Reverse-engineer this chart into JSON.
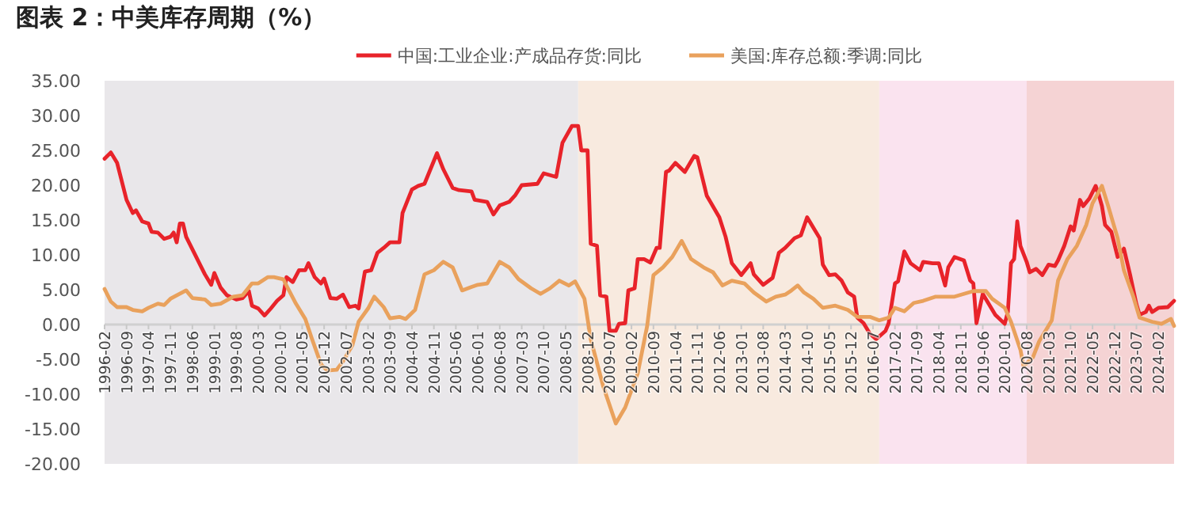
{
  "chart_data": {
    "type": "line",
    "title": "图表 2：中美库存周期（%）",
    "xlim": [
      "1996-02",
      "2024-07"
    ],
    "ylim": [
      -20,
      35
    ],
    "xticks": [
      "1996-02",
      "1996-09",
      "1997-04",
      "1997-11",
      "1998-06",
      "1999-01",
      "1999-08",
      "2000-03",
      "2000-10",
      "2001-05",
      "2001-12",
      "2002-07",
      "2003-02",
      "2003-09",
      "2004-04",
      "2004-11",
      "2005-06",
      "2006-01",
      "2006-08",
      "2007-03",
      "2007-10",
      "2008-05",
      "2008-12",
      "2009-07",
      "2010-02",
      "2010-09",
      "2011-04",
      "2011-11",
      "2012-06",
      "2013-01",
      "2013-08",
      "2014-03",
      "2014-10",
      "2015-05",
      "2015-12",
      "2016-07",
      "2017-02",
      "2017-09",
      "2018-04",
      "2018-11",
      "2019-06",
      "2020-01",
      "2020-08",
      "2021-03",
      "2021-10",
      "2022-05",
      "2022-12",
      "2023-07",
      "2024-02"
    ],
    "yticks": [
      {
        "value": 35,
        "label": "35.00"
      },
      {
        "value": 30,
        "label": "30.00"
      },
      {
        "value": 25,
        "label": "25.00"
      },
      {
        "value": 20,
        "label": "20.00"
      },
      {
        "value": 15,
        "label": "15.00"
      },
      {
        "value": 10,
        "label": "10.00"
      },
      {
        "value": 5,
        "label": "5.00"
      },
      {
        "value": 0,
        "label": "0.00"
      },
      {
        "value": -5,
        "label": "-5.00"
      },
      {
        "value": -10,
        "label": "-10.00"
      },
      {
        "value": -15,
        "label": "-15.00"
      },
      {
        "value": -20,
        "label": "-20.00"
      }
    ],
    "grid": false,
    "legend": "top",
    "marker": "none",
    "line_style": "solid",
    "bands": [
      {
        "axis": "x",
        "from": "1996-02",
        "to": "2008-09",
        "color": "#e9e7ea"
      },
      {
        "axis": "x",
        "from": "2008-09",
        "to": "2016-09",
        "color": "#f8eadf"
      },
      {
        "axis": "x",
        "from": "2016-09",
        "to": "2020-08",
        "color": "#fae3ef"
      },
      {
        "axis": "x",
        "from": "2020-08",
        "to": "2024-07",
        "color": "#f5d3d4"
      }
    ],
    "series": [
      {
        "name": "中国:工业企业:产成品存货:同比",
        "color": "#e8232a",
        "x": [
          "1996-02",
          "1996-04",
          "1996-06",
          "1996-09",
          "1996-11",
          "1996-12",
          "1997-02",
          "1997-04",
          "1997-05",
          "1997-07",
          "1997-09",
          "1997-11",
          "1997-12",
          "1998-01",
          "1998-02",
          "1998-03",
          "1998-04",
          "1998-07",
          "1998-10",
          "1998-12",
          "1999-01",
          "1999-03",
          "1999-05",
          "1999-08",
          "1999-10",
          "1999-12",
          "2000-01",
          "2000-03",
          "2000-05",
          "2000-07",
          "2000-09",
          "2000-11",
          "2000-12",
          "2001-02",
          "2001-04",
          "2001-06",
          "2001-07",
          "2001-09",
          "2001-11",
          "2001-12",
          "2002-02",
          "2002-04",
          "2002-06",
          "2002-08",
          "2002-10",
          "2002-11",
          "2003-01",
          "2003-03",
          "2003-05",
          "2003-07",
          "2003-09",
          "2003-12",
          "2004-01",
          "2004-04",
          "2004-06",
          "2004-08",
          "2004-12",
          "2005-02",
          "2005-05",
          "2005-07",
          "2005-11",
          "2005-12",
          "2006-04",
          "2006-06",
          "2006-08",
          "2006-11",
          "2007-01",
          "2007-03",
          "2007-08",
          "2007-10",
          "2008-02",
          "2008-04",
          "2008-07",
          "2008-09",
          "2008-10",
          "2008-12",
          "2009-01",
          "2009-03",
          "2009-04",
          "2009-06",
          "2009-07",
          "2009-09",
          "2009-10",
          "2009-12",
          "2010-01",
          "2010-03",
          "2010-04",
          "2010-06",
          "2010-08",
          "2010-10",
          "2010-11",
          "2011-01",
          "2011-02",
          "2011-04",
          "2011-07",
          "2011-10",
          "2011-11",
          "2012-02",
          "2012-06",
          "2012-08",
          "2012-10",
          "2013-01",
          "2013-04",
          "2013-05",
          "2013-08",
          "2013-11",
          "2014-01",
          "2014-03",
          "2014-06",
          "2014-08",
          "2014-10",
          "2014-12",
          "2015-02",
          "2015-03",
          "2015-05",
          "2015-07",
          "2015-09",
          "2015-11",
          "2016-01",
          "2016-02",
          "2016-04",
          "2016-06",
          "2016-08",
          "2016-11",
          "2016-12",
          "2017-02",
          "2017-03",
          "2017-05",
          "2017-07",
          "2017-10",
          "2017-11",
          "2018-02",
          "2018-04",
          "2018-06",
          "2018-07",
          "2018-09",
          "2018-12",
          "2019-02",
          "2019-03",
          "2019-04",
          "2019-06",
          "2019-08",
          "2019-10",
          "2020-01",
          "2020-02",
          "2020-03",
          "2020-04",
          "2020-05",
          "2020-06",
          "2020-08",
          "2020-09",
          "2020-11",
          "2021-01",
          "2021-03",
          "2021-05",
          "2021-06",
          "2021-08",
          "2021-10",
          "2021-11",
          "2022-01",
          "2022-02",
          "2022-04",
          "2022-06",
          "2022-07",
          "2022-08",
          "2022-09",
          "2022-11",
          "2023-01",
          "2023-03",
          "2023-05",
          "2023-07",
          "2023-08",
          "2023-10",
          "2023-11",
          "2023-12",
          "2024-02",
          "2024-05",
          "2024-07"
        ],
        "values": [
          23.8,
          24.7,
          23.2,
          17.9,
          16.0,
          16.4,
          14.8,
          14.5,
          13.3,
          13.2,
          12.3,
          12.6,
          13.2,
          11.8,
          14.5,
          14.5,
          12.6,
          9.9,
          7.2,
          5.7,
          7.4,
          5.3,
          4.2,
          3.6,
          3.8,
          4.8,
          2.7,
          2.3,
          1.3,
          2.3,
          3.4,
          4.2,
          6.8,
          6.1,
          7.8,
          7.8,
          8.8,
          6.8,
          5.9,
          6.6,
          3.8,
          3.7,
          4.3,
          2.5,
          2.7,
          2.3,
          7.6,
          7.8,
          10.3,
          11.0,
          11.8,
          11.8,
          16.0,
          19.4,
          19.9,
          20.2,
          24.6,
          22.3,
          19.6,
          19.3,
          19.1,
          17.9,
          17.6,
          15.8,
          17.1,
          17.6,
          18.6,
          20.0,
          20.2,
          21.7,
          21.2,
          26.1,
          28.5,
          28.5,
          25.0,
          25.0,
          11.6,
          11.3,
          4.2,
          4.0,
          -0.9,
          -0.9,
          0.1,
          0.2,
          4.9,
          5.2,
          9.4,
          9.4,
          8.9,
          11.0,
          11.0,
          21.9,
          22.1,
          23.2,
          21.9,
          24.2,
          24.0,
          18.5,
          15.4,
          12.6,
          8.8,
          7.1,
          8.8,
          7.2,
          5.7,
          6.7,
          10.3,
          11.0,
          12.4,
          12.8,
          15.4,
          13.9,
          12.4,
          8.6,
          7.1,
          7.2,
          6.3,
          4.6,
          4.0,
          1.0,
          0.2,
          -1.3,
          -2.1,
          -0.9,
          0.2,
          5.9,
          6.2,
          10.5,
          8.8,
          7.8,
          9.0,
          8.8,
          8.8,
          5.6,
          8.2,
          9.7,
          9.2,
          6.3,
          5.9,
          0.2,
          4.4,
          2.9,
          1.4,
          0.1,
          1.8,
          8.8,
          9.4,
          14.8,
          11.3,
          9.0,
          7.5,
          8.0,
          7.1,
          8.6,
          8.4,
          9.2,
          11.3,
          14.1,
          13.5,
          17.9,
          17.0,
          18.1,
          19.9,
          18.6,
          17.0,
          14.3,
          13.3,
          9.7,
          10.9,
          7.1,
          2.9,
          1.4,
          1.8,
          2.7,
          1.8,
          2.4,
          2.5,
          3.4
        ]
      },
      {
        "name": "美国:库存总额:季调:同比",
        "color": "#e9a15c",
        "x": [
          "1996-02",
          "1996-04",
          "1996-06",
          "1996-09",
          "1996-11",
          "1997-02",
          "1997-04",
          "1997-07",
          "1997-09",
          "1997-11",
          "1998-01",
          "1998-04",
          "1998-06",
          "1998-10",
          "1998-12",
          "1999-03",
          "1999-07",
          "1999-10",
          "2000-01",
          "2000-03",
          "2000-06",
          "2000-08",
          "2000-11",
          "2000-12",
          "2001-03",
          "2001-06",
          "2001-08",
          "2001-11",
          "2002-01",
          "2002-04",
          "2002-06",
          "2002-09",
          "2002-11",
          "2003-02",
          "2003-04",
          "2003-07",
          "2003-09",
          "2003-12",
          "2004-02",
          "2004-05",
          "2004-08",
          "2004-11",
          "2005-02",
          "2005-05",
          "2005-08",
          "2005-11",
          "2006-01",
          "2006-04",
          "2006-08",
          "2006-11",
          "2007-02",
          "2007-06",
          "2007-09",
          "2007-12",
          "2008-03",
          "2008-06",
          "2008-08",
          "2008-11",
          "2009-01",
          "2009-05",
          "2009-09",
          "2009-12",
          "2010-04",
          "2010-07",
          "2010-09",
          "2010-12",
          "2011-03",
          "2011-06",
          "2011-09",
          "2012-01",
          "2012-04",
          "2012-07",
          "2012-10",
          "2013-02",
          "2013-05",
          "2013-09",
          "2013-12",
          "2014-03",
          "2014-05",
          "2014-07",
          "2014-09",
          "2014-12",
          "2015-03",
          "2015-07",
          "2015-11",
          "2016-02",
          "2016-06",
          "2016-09",
          "2016-12",
          "2017-02",
          "2017-05",
          "2017-08",
          "2017-11",
          "2018-03",
          "2018-06",
          "2018-09",
          "2018-12",
          "2019-03",
          "2019-07",
          "2019-09",
          "2020-01",
          "2020-03",
          "2020-06",
          "2020-07",
          "2020-10",
          "2020-12",
          "2021-04",
          "2021-06",
          "2021-09",
          "2021-12",
          "2022-03",
          "2022-05",
          "2022-08",
          "2022-10",
          "2023-01",
          "2023-03",
          "2023-06",
          "2023-08",
          "2023-12",
          "2024-03",
          "2024-06",
          "2024-07"
        ],
        "values": [
          5.1,
          3.3,
          2.5,
          2.5,
          2.1,
          1.9,
          2.4,
          3.0,
          2.8,
          3.7,
          4.2,
          4.9,
          3.8,
          3.6,
          2.8,
          3.0,
          4.0,
          4.2,
          5.9,
          5.9,
          6.8,
          6.8,
          6.5,
          5.6,
          3.0,
          0.8,
          -1.9,
          -5.7,
          -6.6,
          -6.5,
          -5.3,
          -3.0,
          0.4,
          2.3,
          4.0,
          2.5,
          0.9,
          1.1,
          0.8,
          2.1,
          7.2,
          7.8,
          9.0,
          8.2,
          4.9,
          5.4,
          5.7,
          5.9,
          9.0,
          8.2,
          6.5,
          5.2,
          4.4,
          5.2,
          6.3,
          5.6,
          6.2,
          3.7,
          -2.1,
          -8.9,
          -14.2,
          -11.9,
          -7.0,
          -0.2,
          7.1,
          8.2,
          9.7,
          12.0,
          9.4,
          8.2,
          7.5,
          5.6,
          6.3,
          5.9,
          4.6,
          3.3,
          4.0,
          4.3,
          4.9,
          5.6,
          4.6,
          3.7,
          2.4,
          2.7,
          2.1,
          1.1,
          1.1,
          0.6,
          1.0,
          2.4,
          1.9,
          3.1,
          3.4,
          4.0,
          4.0,
          4.0,
          4.4,
          4.8,
          4.8,
          3.7,
          2.4,
          0.4,
          -3.6,
          -6.0,
          -4.7,
          -2.4,
          0.6,
          6.3,
          9.4,
          11.3,
          14.3,
          17.4,
          19.9,
          17.0,
          12.4,
          7.8,
          4.0,
          1.0,
          0.4,
          0.1,
          0.8,
          -0.2
        ]
      }
    ]
  }
}
